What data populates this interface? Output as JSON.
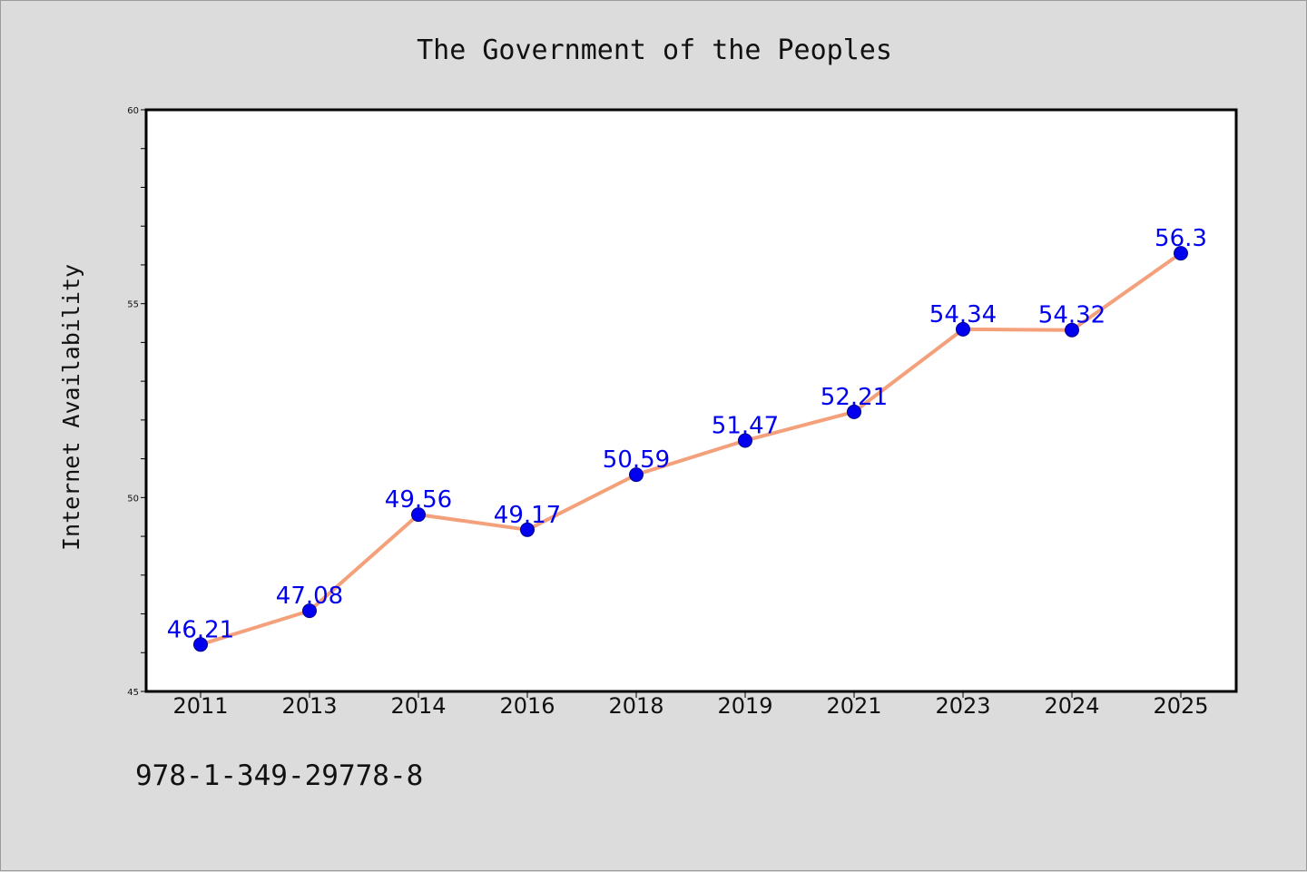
{
  "chart_data": {
    "type": "line",
    "title": "The Government of the Peoples",
    "xlabel": "",
    "ylabel": "Internet Availability",
    "categories": [
      "2011",
      "2013",
      "2014",
      "2016",
      "2018",
      "2019",
      "2021",
      "2023",
      "2024",
      "2025"
    ],
    "series": [
      {
        "values": [
          46.21,
          47.08,
          49.56,
          49.17,
          50.59,
          51.47,
          52.21,
          54.34,
          54.32,
          56.3
        ],
        "data_labels": [
          "46.21",
          "47.08",
          "49.56",
          "49.17",
          "50.59",
          "51.47",
          "52.21",
          "54.34",
          "54.32",
          "56.3"
        ],
        "line_color": "#f4a07a",
        "marker_color": "#0000ee"
      }
    ],
    "ylim": [
      45,
      60
    ],
    "yticks": [
      "45",
      "50",
      "55",
      "60"
    ],
    "grid": false,
    "legend": "none"
  },
  "footer_text": "978-1-349-29778-8",
  "colors": {
    "background": "#dcdcdc",
    "plot_area": "#ffffff",
    "axis": "#000000"
  }
}
